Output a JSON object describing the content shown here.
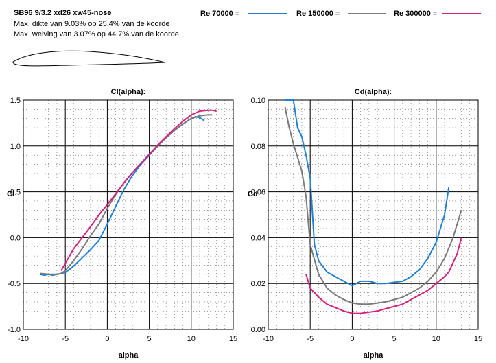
{
  "header": {
    "title": "SB96 9/3.2 xd26 xw45-nose",
    "line1": "Max. dikte van 9.03% op 25.4% van de koorde",
    "line2": "Max. welving van 3.07% op 44.7% van de koorde"
  },
  "legend": [
    {
      "label": "Re 70000 =",
      "color": "#1f7fd6"
    },
    {
      "label": "Re 150000 =",
      "color": "#7a7a7a"
    },
    {
      "label": "Re 300000 =",
      "color": "#d6207e"
    }
  ],
  "chart_data": [
    {
      "type": "line",
      "title": "Cl(alpha):",
      "xlabel": "alpha",
      "ylabel": "Cl",
      "xlim": [
        -10,
        15
      ],
      "ylim": [
        -1.0,
        1.5
      ],
      "xticks": [
        "-10",
        "-5",
        "0",
        "5",
        "10",
        "15"
      ],
      "yticks": [
        "-1.0",
        "-0.5",
        "0.0",
        "0.5",
        "1.0",
        "1.5"
      ],
      "grid": true,
      "series": [
        {
          "name": "Re 70000",
          "color": "#1f7fd6",
          "x": [
            -8,
            -7.5,
            -7,
            -6.5,
            -6,
            -5.5,
            -5,
            -4,
            -3,
            -2,
            -1,
            0,
            1,
            2,
            3,
            4,
            5,
            6,
            7,
            8,
            9,
            10,
            10.5,
            11,
            11.5
          ],
          "y": [
            -0.4,
            -0.41,
            -0.4,
            -0.41,
            -0.4,
            -0.39,
            -0.38,
            -0.31,
            -0.22,
            -0.13,
            -0.03,
            0.15,
            0.34,
            0.53,
            0.68,
            0.8,
            0.9,
            1.0,
            1.09,
            1.17,
            1.24,
            1.3,
            1.32,
            1.31,
            1.28
          ]
        },
        {
          "name": "Re 150000",
          "color": "#7a7a7a",
          "x": [
            -8,
            -7,
            -6,
            -5.5,
            -5,
            -4,
            -3,
            -2,
            -1,
            0,
            1,
            2,
            3,
            4,
            5,
            6,
            7,
            8,
            9,
            10,
            11,
            12,
            12.5
          ],
          "y": [
            -0.39,
            -0.4,
            -0.4,
            -0.39,
            -0.36,
            -0.25,
            -0.12,
            0.02,
            0.15,
            0.32,
            0.47,
            0.6,
            0.71,
            0.81,
            0.91,
            1.0,
            1.09,
            1.17,
            1.24,
            1.3,
            1.33,
            1.34,
            1.34
          ]
        },
        {
          "name": "Re 300000",
          "color": "#d6207e",
          "x": [
            -5.5,
            -5,
            -4,
            -3,
            -2,
            -1,
            0,
            1,
            2,
            3,
            4,
            5,
            6,
            7,
            8,
            9,
            10,
            11,
            12,
            12.5,
            13
          ],
          "y": [
            -0.36,
            -0.28,
            -0.12,
            0.0,
            0.12,
            0.25,
            0.36,
            0.48,
            0.6,
            0.71,
            0.81,
            0.91,
            1.01,
            1.1,
            1.19,
            1.27,
            1.34,
            1.38,
            1.39,
            1.39,
            1.38
          ]
        }
      ]
    },
    {
      "type": "line",
      "title": "Cd(alpha):",
      "xlabel": "alpha",
      "ylabel": "Cd",
      "xlim": [
        -10,
        15
      ],
      "ylim": [
        0.0,
        0.1
      ],
      "xticks": [
        "-10",
        "-5",
        "0",
        "5",
        "10",
        "15"
      ],
      "yticks": [
        "0.00",
        "0.02",
        "0.04",
        "0.06",
        "0.08",
        "0.10"
      ],
      "grid": true,
      "series": [
        {
          "name": "Re 70000",
          "color": "#1f7fd6",
          "x": [
            -8,
            -7.5,
            -7,
            -6.5,
            -6.5,
            -6,
            -5.5,
            -5,
            -4.5,
            -4,
            -3,
            -2,
            -1,
            0,
            1,
            2,
            3,
            4,
            5,
            6,
            7,
            8,
            9,
            10,
            11,
            11.5
          ],
          "y": [
            0.1,
            0.1,
            0.1,
            0.088,
            0.088,
            0.084,
            0.076,
            0.066,
            0.037,
            0.03,
            0.025,
            0.023,
            0.021,
            0.019,
            0.021,
            0.021,
            0.02,
            0.02,
            0.0205,
            0.021,
            0.023,
            0.026,
            0.031,
            0.038,
            0.05,
            0.062
          ]
        },
        {
          "name": "Re 150000",
          "color": "#7a7a7a",
          "x": [
            -8,
            -7.5,
            -7,
            -6,
            -5.5,
            -5,
            -4,
            -3,
            -2,
            -1,
            0,
            1,
            2,
            3,
            4,
            5,
            6,
            7,
            8,
            9,
            10,
            11,
            12,
            13
          ],
          "y": [
            0.097,
            0.088,
            0.081,
            0.069,
            0.058,
            0.037,
            0.024,
            0.018,
            0.015,
            0.013,
            0.0115,
            0.011,
            0.011,
            0.0115,
            0.012,
            0.013,
            0.014,
            0.016,
            0.018,
            0.021,
            0.025,
            0.031,
            0.04,
            0.052
          ]
        },
        {
          "name": "Re 300000",
          "color": "#d6207e",
          "x": [
            -5.5,
            -5,
            -4,
            -3,
            -2,
            -1,
            0,
            1,
            2,
            3,
            4,
            5,
            6,
            7,
            8,
            9,
            10,
            11,
            11.5,
            12,
            12.5,
            13
          ],
          "y": [
            0.024,
            0.018,
            0.014,
            0.011,
            0.0095,
            0.008,
            0.007,
            0.007,
            0.0075,
            0.008,
            0.009,
            0.01,
            0.011,
            0.013,
            0.015,
            0.017,
            0.02,
            0.023,
            0.025,
            0.029,
            0.033,
            0.04
          ]
        }
      ]
    }
  ]
}
